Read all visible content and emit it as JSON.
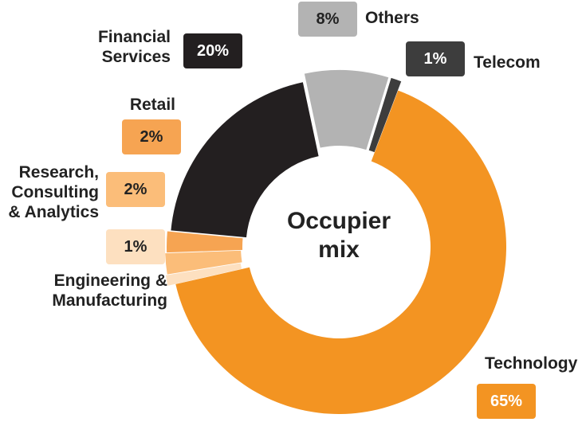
{
  "chart_data": {
    "type": "pie",
    "title": "Occupier\nmix",
    "categories": [
      "Others",
      "Telecom",
      "Technology",
      "Engineering & Manufacturing",
      "Research, Consulting & Analytics",
      "Retail",
      "Financial Services"
    ],
    "values": [
      8,
      1,
      65,
      1,
      2,
      2,
      20
    ],
    "value_labels": [
      "8%",
      "1%",
      "65%",
      "1%",
      "2%",
      "2%",
      "20%"
    ],
    "label_texts": [
      "Others",
      "Telecom",
      "Technology",
      "Engineering &\nManufacturing",
      "Research,\nConsulting\n& Analytics",
      "Retail",
      "Financial\nServices"
    ],
    "colors": [
      "#b3b3b3",
      "#3d3d3d",
      "#f39422",
      "#fde0c0",
      "#fbbd79",
      "#f6a452",
      "#231f20"
    ],
    "badge_colors": [
      "#b3b3b3",
      "#3d3d3d",
      "#f39422",
      "#fde0c0",
      "#fbbd79",
      "#f6a452",
      "#231f20"
    ],
    "badge_text_colors": [
      "#222222",
      "#ffffff",
      "#ffffff",
      "#222222",
      "#222222",
      "#222222",
      "#ffffff"
    ],
    "legend": "callouts"
  }
}
